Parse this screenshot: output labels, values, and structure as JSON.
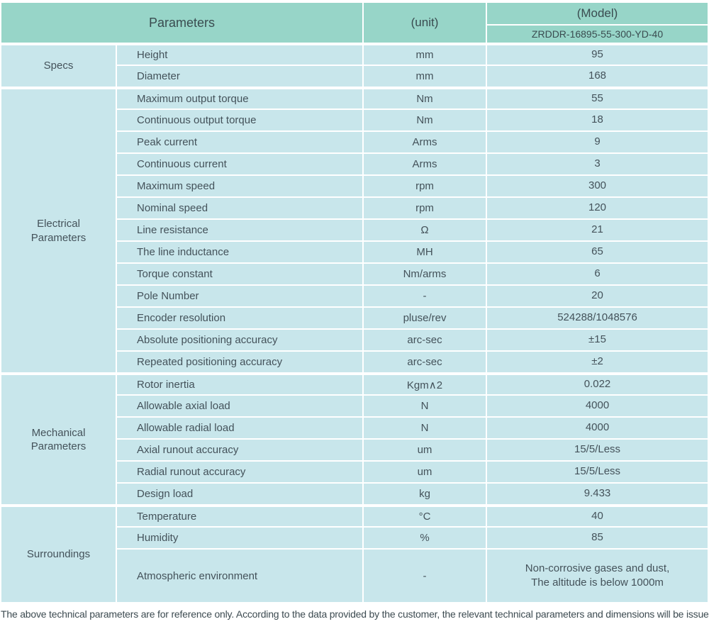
{
  "colors": {
    "header_bg": "#97d5c8",
    "cell_bg": "#c8e6eb",
    "text": "#44525a",
    "header_text": "#3a4c50",
    "footer_text": "#3d4b51",
    "background": "#ffffff"
  },
  "table": {
    "header": {
      "parameters_label": "Parameters",
      "unit_label": "(unit)",
      "model_label": "(Model)",
      "model_value": "ZRDDR-16895-55-300-YD-40"
    },
    "groups": [
      {
        "name": "Specs",
        "rows": [
          {
            "parameter": "Height",
            "unit": "mm",
            "value": "95"
          },
          {
            "parameter": "Diameter",
            "unit": "mm",
            "value": "168"
          }
        ]
      },
      {
        "name": "Electrical\nParameters",
        "rows": [
          {
            "parameter": "Maximum output torque",
            "unit": "Nm",
            "value": "55"
          },
          {
            "parameter": "Continuous output torque",
            "unit": "Nm",
            "value": "18"
          },
          {
            "parameter": "Peak current",
            "unit": "Arms",
            "value": "9"
          },
          {
            "parameter": "Continuous current",
            "unit": "Arms",
            "value": "3"
          },
          {
            "parameter": "Maximum speed",
            "unit": "rpm",
            "value": "300"
          },
          {
            "parameter": "Nominal speed",
            "unit": "rpm",
            "value": "120"
          },
          {
            "parameter": "Line resistance",
            "unit": "Ω",
            "value": "21"
          },
          {
            "parameter": "The line inductance",
            "unit": "MH",
            "value": "65"
          },
          {
            "parameter": "Torque constant",
            "unit": "Nm/arms",
            "value": "6"
          },
          {
            "parameter": "Pole Number",
            "unit": "-",
            "value": "20"
          },
          {
            "parameter": "Encoder resolution",
            "unit": "pluse/rev",
            "value": "524288/1048576"
          },
          {
            "parameter": "Absolute positioning accuracy",
            "unit": "arc-sec",
            "value": "±15"
          },
          {
            "parameter": "Repeated positioning accuracy",
            "unit": "arc-sec",
            "value": "±2"
          }
        ]
      },
      {
        "name": "Mechanical\nParameters",
        "rows": [
          {
            "parameter": "Rotor inertia",
            "unit": "Kgm∧2",
            "value": "0.022"
          },
          {
            "parameter": "Allowable axial load",
            "unit": "N",
            "value": "4000"
          },
          {
            "parameter": "Allowable radial load",
            "unit": "N",
            "value": "4000"
          },
          {
            "parameter": "Axial runout accuracy",
            "unit": "um",
            "value": "15/5/Less"
          },
          {
            "parameter": "Radial runout accuracy",
            "unit": "um",
            "value": "15/5/Less"
          },
          {
            "parameter": "Design load",
            "unit": "kg",
            "value": "9.433"
          }
        ]
      },
      {
        "name": "Surroundings",
        "rows": [
          {
            "parameter": "Temperature",
            "unit": "°C",
            "value": "40"
          },
          {
            "parameter": "Humidity",
            "unit": "%",
            "value": "85"
          },
          {
            "parameter": "Atmospheric environment",
            "unit": "-",
            "value": "Non-corrosive gases and dust,\nThe altitude is below 1000m",
            "tall": true
          }
        ]
      }
    ]
  },
  "footer": {
    "note": "The above technical parameters are for reference only. According to the data provided by the customer, the relevant technical parameters and dimensions will be issued."
  }
}
